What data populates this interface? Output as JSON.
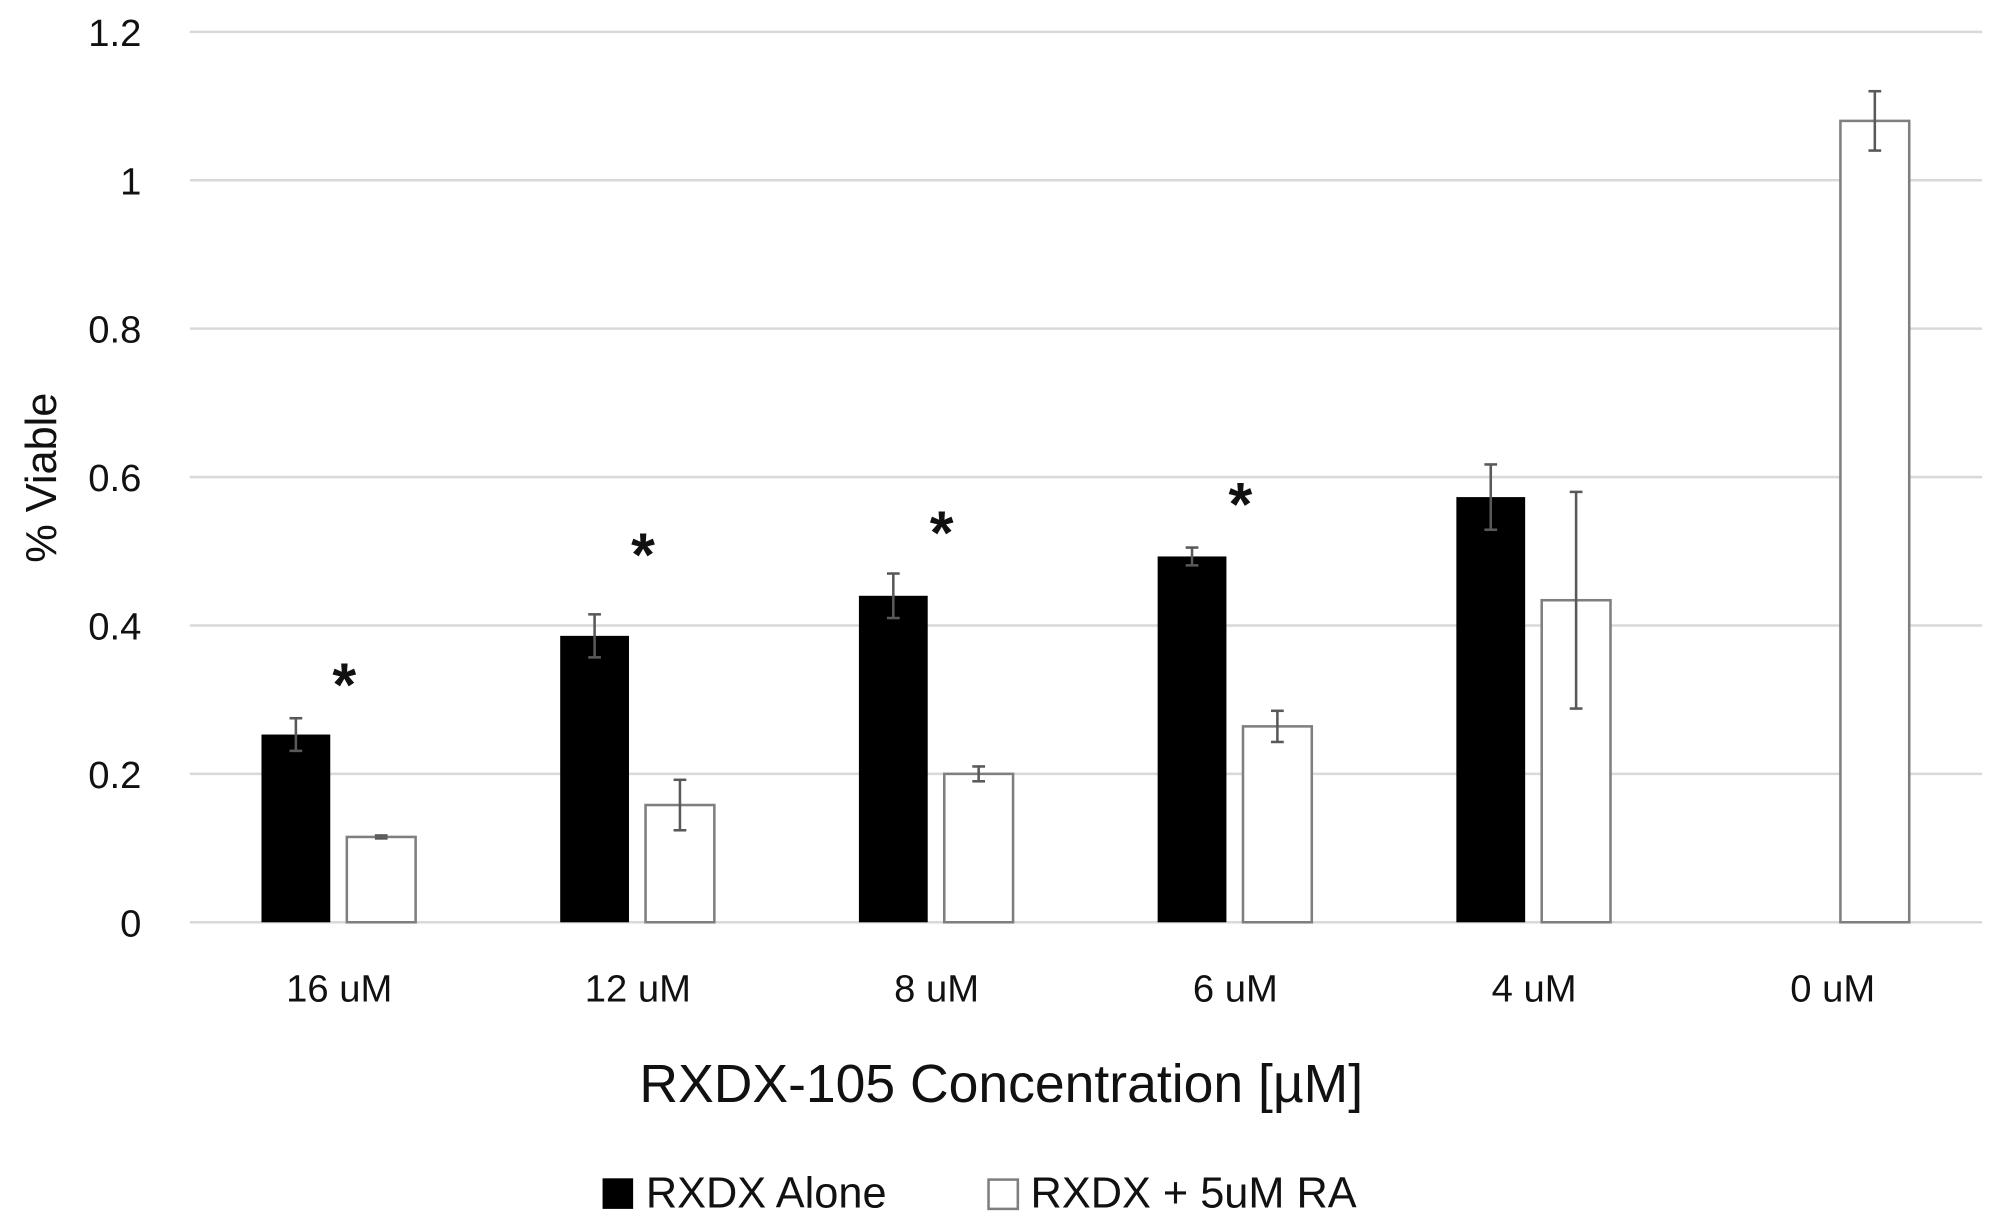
{
  "chart_data": {
    "type": "bar",
    "title": "",
    "xlabel": "RXDX-105 Concentration [µM]",
    "ylabel": "% Viable",
    "ylim": [
      0,
      1.2
    ],
    "yticks": [
      0,
      0.2,
      0.4,
      0.6,
      0.8,
      1,
      1.2
    ],
    "ytick_labels": [
      "0",
      "0.2",
      "0.4",
      "0.6",
      "0.8",
      "1",
      "1.2"
    ],
    "grid": true,
    "legend_position": "bottom",
    "categories": [
      "16 uM",
      "12 uM",
      "8 uM",
      "6 uM",
      "4 uM",
      "0 uM"
    ],
    "series": [
      {
        "name": "RXDX Alone",
        "color": "#000000",
        "fill": "#000000",
        "values": [
          0.253,
          0.386,
          0.44,
          0.493,
          0.573,
          null
        ],
        "errors": [
          0.022,
          0.029,
          0.03,
          0.012,
          0.044,
          null
        ]
      },
      {
        "name": "RXDX + 5uM RA",
        "color": "#7f7f7f",
        "fill": "#ffffff",
        "values": [
          0.115,
          0.158,
          0.2,
          0.264,
          0.434,
          1.08
        ],
        "errors": [
          0.002,
          0.034,
          0.01,
          0.021,
          0.146,
          0.04
        ]
      }
    ],
    "annotations": [
      {
        "text": "*",
        "category": "16 uM",
        "y": 0.33
      },
      {
        "text": "*",
        "category": "12 uM",
        "y": 0.505
      },
      {
        "text": "*",
        "category": "8 uM",
        "y": 0.535
      },
      {
        "text": "*",
        "category": "6 uM",
        "y": 0.573
      }
    ],
    "colors": {
      "grid": "#d9d9d9",
      "error_bar": "#595959",
      "text": "#111111"
    }
  }
}
